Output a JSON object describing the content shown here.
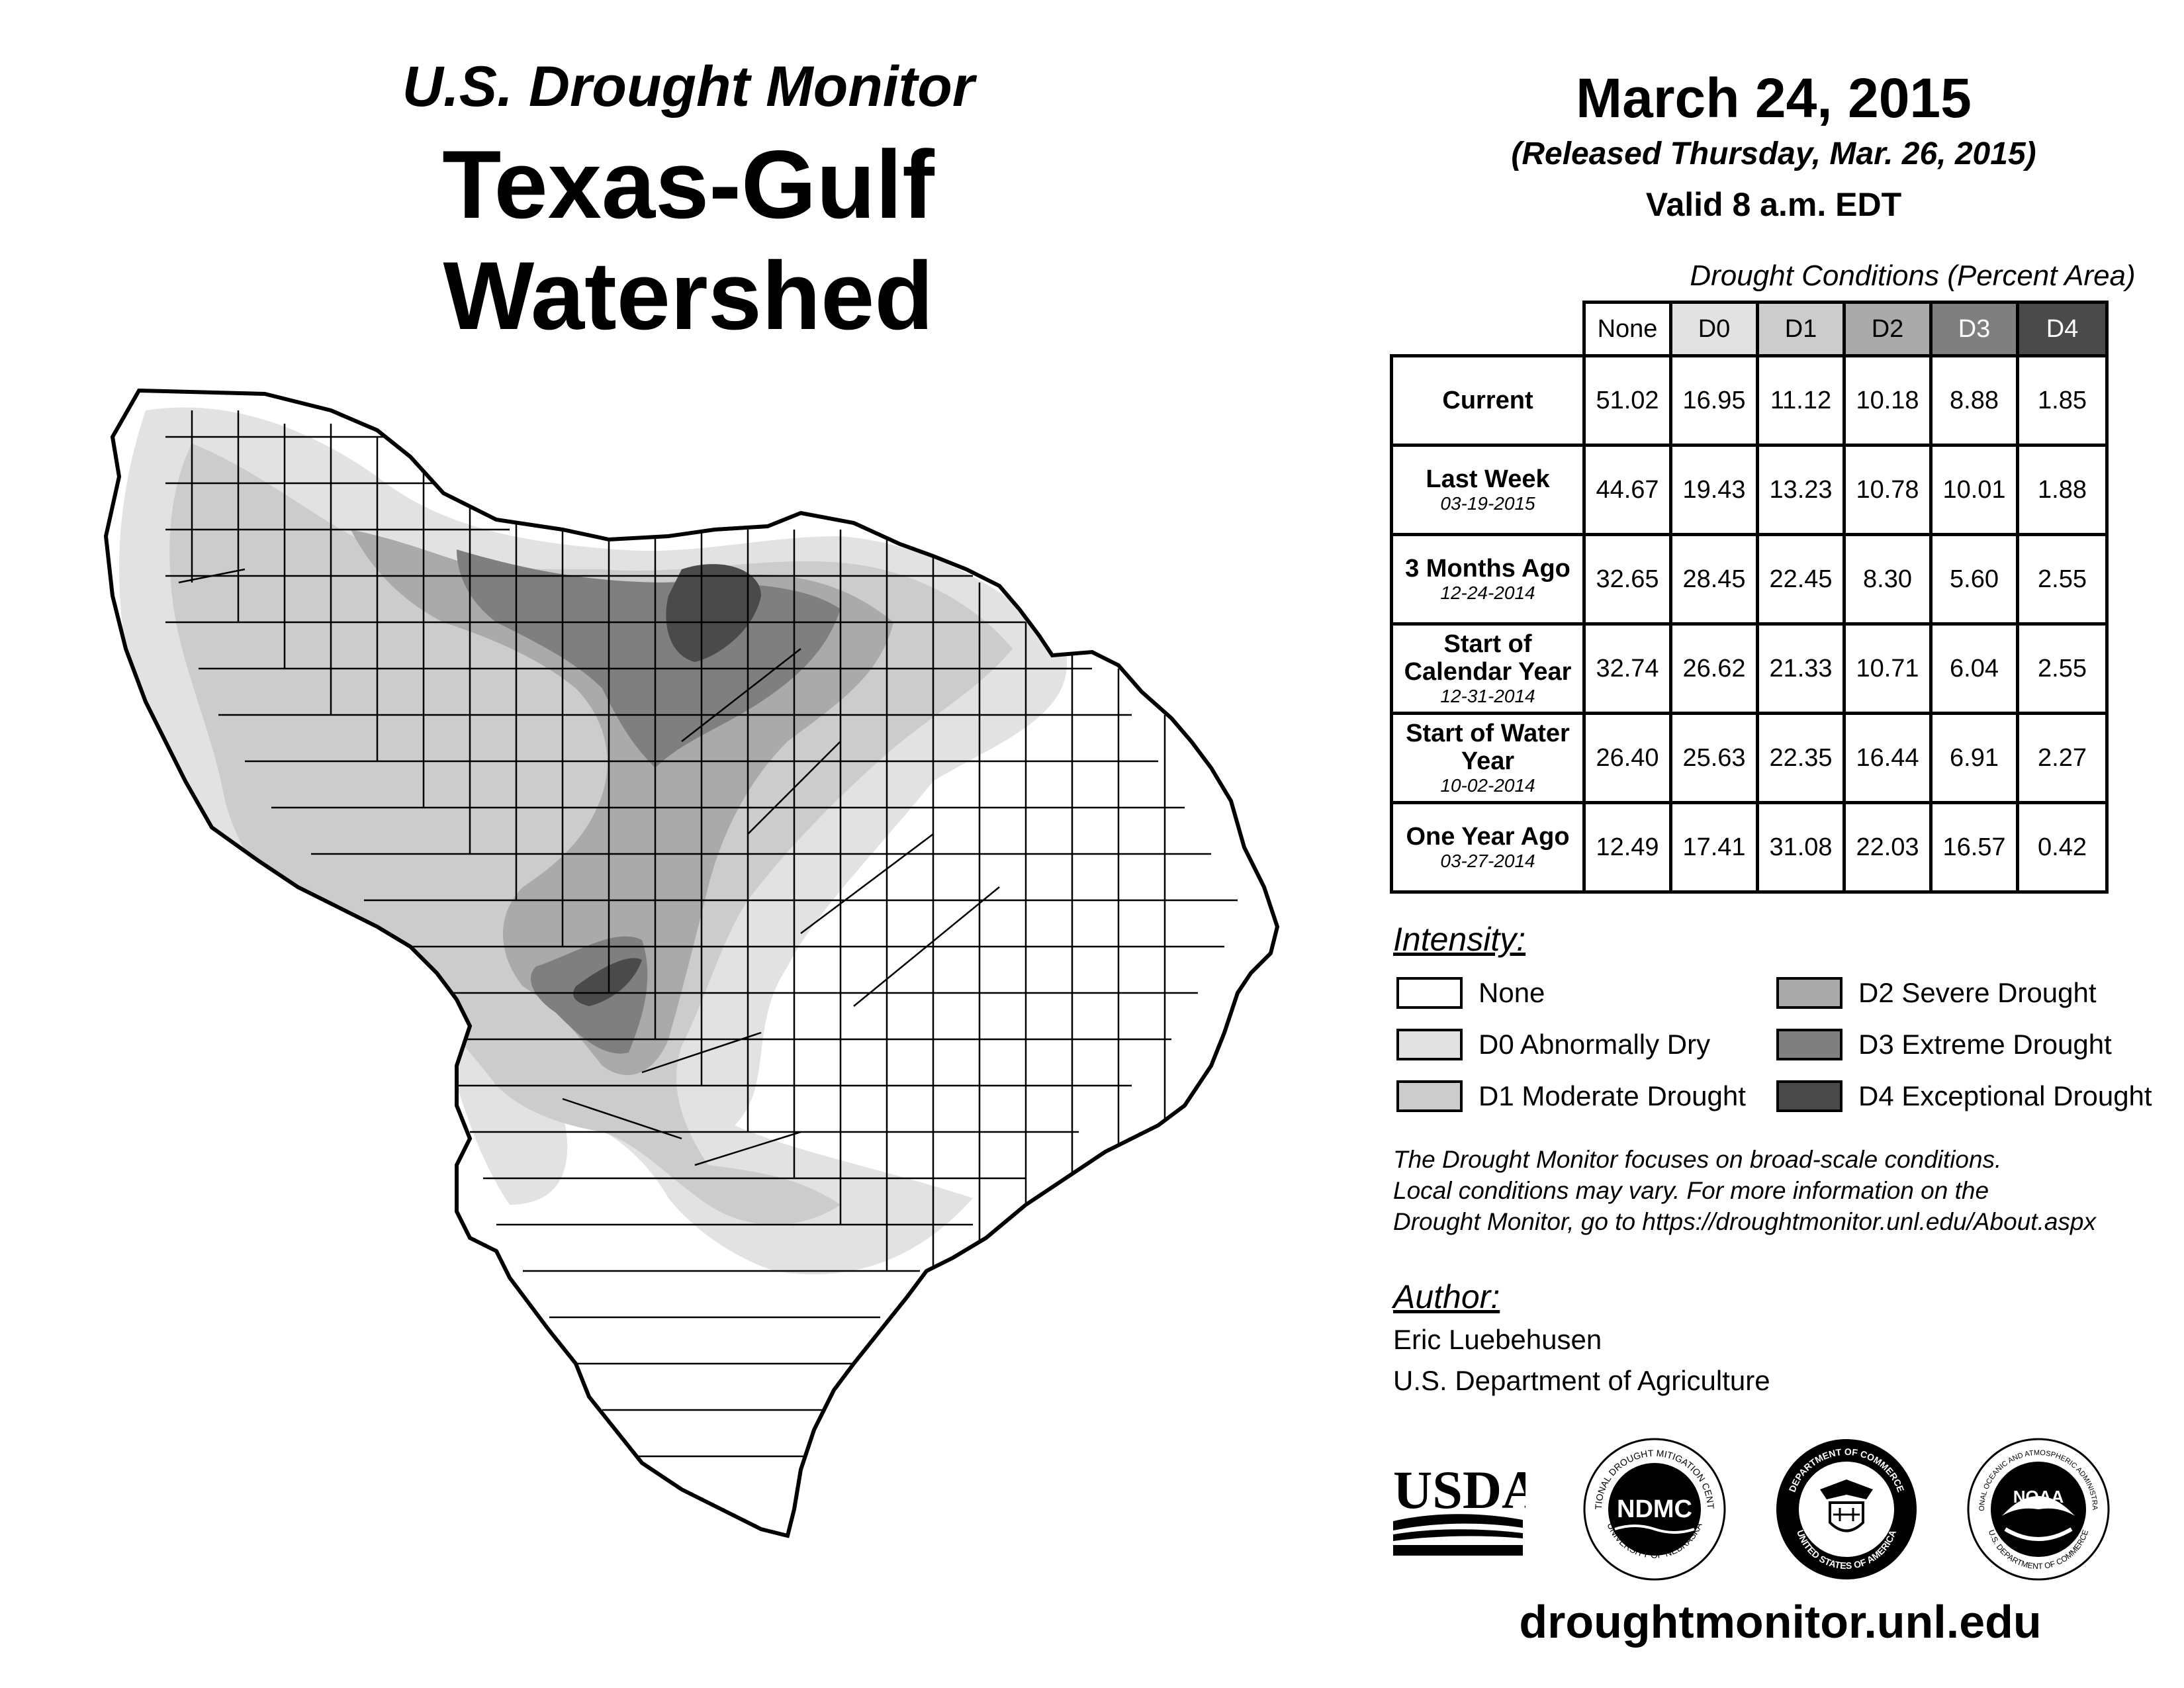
{
  "header": {
    "subtitle": "U.S. Drought Monitor",
    "title": "Texas-Gulf Watershed",
    "date": "March 24, 2015",
    "released": "(Released Thursday, Mar. 26, 2015)",
    "valid": "Valid 8 a.m. EDT"
  },
  "table": {
    "title": "Drought Conditions (Percent Area)",
    "columns": [
      "None",
      "D0",
      "D1",
      "D2",
      "D3",
      "D4"
    ],
    "rows": [
      {
        "label": "Current",
        "date": "",
        "values": [
          "51.02",
          "16.95",
          "11.12",
          "10.18",
          "8.88",
          "1.85"
        ]
      },
      {
        "label": "Last Week",
        "date": "03-19-2015",
        "values": [
          "44.67",
          "19.43",
          "13.23",
          "10.78",
          "10.01",
          "1.88"
        ]
      },
      {
        "label": "3 Months Ago",
        "date": "12-24-2014",
        "values": [
          "32.65",
          "28.45",
          "22.45",
          "8.30",
          "5.60",
          "2.55"
        ]
      },
      {
        "label": "Start of Calendar Year",
        "date": "12-31-2014",
        "values": [
          "32.74",
          "26.62",
          "21.33",
          "10.71",
          "6.04",
          "2.55"
        ]
      },
      {
        "label": "Start of Water Year",
        "date": "10-02-2014",
        "values": [
          "26.40",
          "25.63",
          "22.35",
          "16.44",
          "6.91",
          "2.27"
        ]
      },
      {
        "label": "One Year Ago",
        "date": "03-27-2014",
        "values": [
          "12.49",
          "17.41",
          "31.08",
          "22.03",
          "16.57",
          "0.42"
        ]
      }
    ]
  },
  "legend": {
    "title": "Intensity:",
    "items": [
      {
        "label": "None",
        "color": "#ffffff"
      },
      {
        "label": "D0 Abnormally Dry",
        "color": "#e2e2e2"
      },
      {
        "label": "D1 Moderate Drought",
        "color": "#cccccc"
      },
      {
        "label": "D2 Severe Drought",
        "color": "#aaaaaa"
      },
      {
        "label": "D3 Extreme Drought",
        "color": "#7f7f7f"
      },
      {
        "label": "D4 Exceptional Drought",
        "color": "#4a4a4a"
      }
    ]
  },
  "header_colors": [
    "#ffffff",
    "#e2e2e2",
    "#cccccc",
    "#aaaaaa",
    "#7f7f7f",
    "#4a4a4a"
  ],
  "note": [
    "The Drought Monitor focuses on broad-scale conditions.",
    "Local conditions may vary. For more information on the",
    "Drought Monitor, go to https://droughtmonitor.unl.edu/About.aspx"
  ],
  "author": {
    "title": "Author:",
    "name": "Eric Luebehusen",
    "org": "U.S. Department of Agriculture"
  },
  "logos": {
    "usda": "USDA",
    "ndmc": "NDMC",
    "ndmc_ring_top": "NATIONAL DROUGHT MITIGATION CENTER",
    "ndmc_ring_bottom": "UNIVERSITY OF NEBRASKA",
    "doc_ring_top": "DEPARTMENT OF COMMERCE",
    "doc_ring_bottom": "UNITED STATES OF AMERICA",
    "noaa": "NOAA",
    "noaa_ring_top": "NATIONAL OCEANIC AND ATMOSPHERIC ADMINISTRATION",
    "noaa_ring_bottom": "U.S. DEPARTMENT OF COMMERCE"
  },
  "website": "droughtmonitor.unl.edu"
}
